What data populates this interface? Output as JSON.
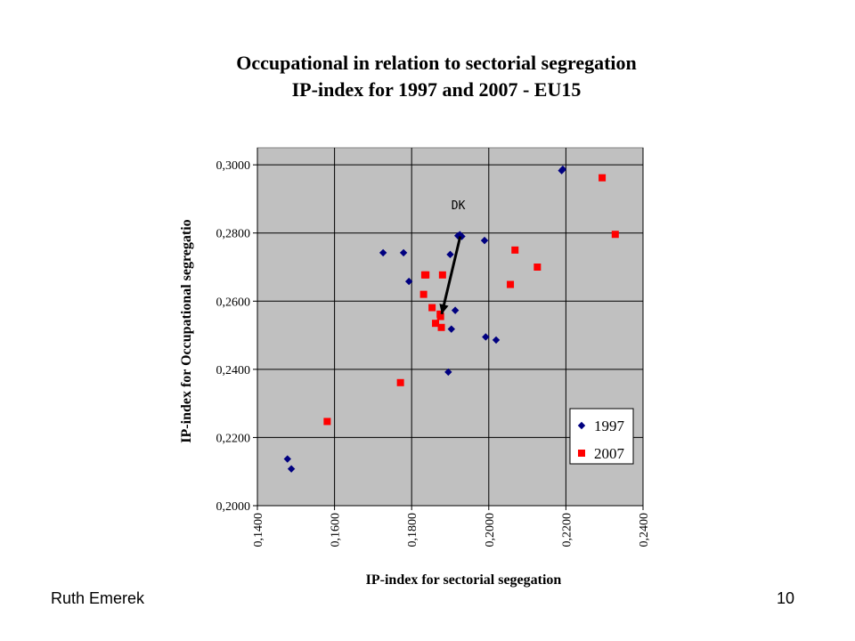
{
  "footer": {
    "author": "Ruth Emerek",
    "page_number": "10"
  },
  "chart_data": {
    "type": "scatter",
    "title": "Occupational in relation to sectorial segregation",
    "subtitle": "IP-index for 1997 and 2007 - EU15",
    "xlabel": "IP-index for sectorial segegation",
    "ylabel": "IP-index for Occupational segregatio",
    "xlim": [
      0.14,
      0.24
    ],
    "ylim": [
      0.2,
      0.305
    ],
    "x_ticks": [
      "0,1400",
      "0,1600",
      "0,1800",
      "0,2000",
      "0,2200",
      "0,2400"
    ],
    "x_tick_values": [
      0.14,
      0.16,
      0.18,
      0.2,
      0.22,
      0.24
    ],
    "y_ticks": [
      "0,2000",
      "0,2200",
      "0,2400",
      "0,2600",
      "0,2800",
      "0,3000"
    ],
    "y_tick_values": [
      0.2,
      0.22,
      0.24,
      0.26,
      0.28,
      0.3
    ],
    "grid": true,
    "legend_position": "bottom-right inside plot",
    "background": "#c0c0c0",
    "series": [
      {
        "name": "1997",
        "marker": "diamond",
        "color": "#000080",
        "points": [
          [
            0.1478,
            0.2137
          ],
          [
            0.1488,
            0.2108
          ],
          [
            0.1726,
            0.2742
          ],
          [
            0.1779,
            0.2742
          ],
          [
            0.1793,
            0.2658
          ],
          [
            0.1895,
            0.2392
          ],
          [
            0.19,
            0.2737
          ],
          [
            0.1903,
            0.2518
          ],
          [
            0.1913,
            0.2573
          ],
          [
            0.192,
            0.2792
          ],
          [
            0.1925,
            0.2795
          ],
          [
            0.193,
            0.279
          ],
          [
            0.1989,
            0.2778
          ],
          [
            0.1992,
            0.2495
          ],
          [
            0.2019,
            0.2486
          ],
          [
            0.2189,
            0.2983
          ],
          [
            0.2192,
            0.2987
          ]
        ]
      },
      {
        "name": "2007",
        "marker": "square",
        "color": "#ff0000",
        "points": [
          [
            0.1581,
            0.2247
          ],
          [
            0.1771,
            0.2361
          ],
          [
            0.1831,
            0.262
          ],
          [
            0.1834,
            0.2677
          ],
          [
            0.1837,
            0.2677
          ],
          [
            0.1853,
            0.2581
          ],
          [
            0.1862,
            0.2535
          ],
          [
            0.1874,
            0.2562
          ],
          [
            0.1875,
            0.2555
          ],
          [
            0.1877,
            0.2523
          ],
          [
            0.188,
            0.2677
          ],
          [
            0.2056,
            0.2649
          ],
          [
            0.2068,
            0.275
          ],
          [
            0.2126,
            0.27
          ],
          [
            0.2294,
            0.2962
          ],
          [
            0.2328,
            0.2796
          ]
        ]
      }
    ],
    "annotations": [
      {
        "text": "DK",
        "x": 0.1921,
        "y": 0.287
      }
    ],
    "arrows": [
      {
        "from": [
          0.1926,
          0.279
        ],
        "to": [
          0.1878,
          0.2562
        ]
      }
    ]
  }
}
